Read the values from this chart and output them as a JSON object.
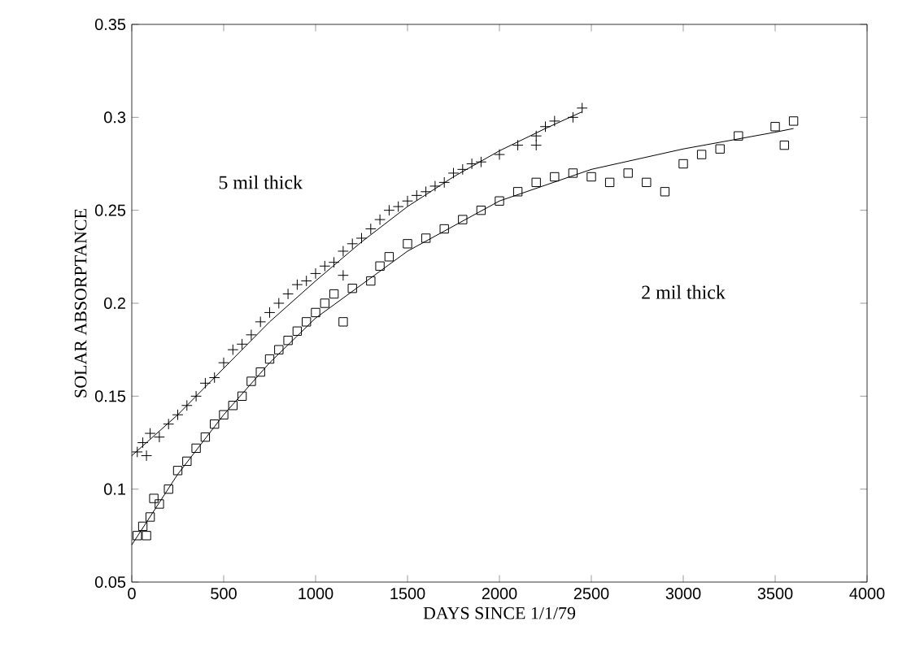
{
  "chart_data": {
    "type": "scatter",
    "xlabel": "DAYS SINCE 1/1/79",
    "ylabel": "SOLAR ABSORPTANCE",
    "xlim": [
      0,
      4000
    ],
    "xticks": [
      0,
      500,
      1000,
      1500,
      2000,
      2500,
      3000,
      3500,
      4000
    ],
    "ylim": [
      0.05,
      0.35
    ],
    "yticks": [
      0.05,
      0.1,
      0.15,
      0.2,
      0.25,
      0.3,
      0.35
    ],
    "grid": false,
    "legend": false,
    "series": [
      {
        "marker": "cross",
        "color": "#000000",
        "x": [
          30,
          60,
          80,
          100,
          150,
          200,
          250,
          300,
          350,
          400,
          450,
          500,
          550,
          600,
          650,
          700,
          750,
          800,
          850,
          900,
          950,
          1000,
          1050,
          1100,
          1150,
          1150,
          1200,
          1250,
          1300,
          1350,
          1400,
          1450,
          1500,
          1550,
          1600,
          1650,
          1700,
          1750,
          1800,
          1850,
          1900,
          2000,
          2100,
          2200,
          2200,
          2250,
          2300,
          2400,
          2450
        ],
        "values": [
          0.12,
          0.125,
          0.118,
          0.13,
          0.128,
          0.135,
          0.14,
          0.145,
          0.15,
          0.157,
          0.16,
          0.168,
          0.175,
          0.178,
          0.183,
          0.19,
          0.195,
          0.2,
          0.205,
          0.21,
          0.212,
          0.216,
          0.22,
          0.222,
          0.228,
          0.215,
          0.232,
          0.235,
          0.24,
          0.245,
          0.25,
          0.252,
          0.255,
          0.258,
          0.26,
          0.263,
          0.265,
          0.27,
          0.272,
          0.275,
          0.276,
          0.28,
          0.285,
          0.29,
          0.285,
          0.295,
          0.298,
          0.3,
          0.305
        ]
      },
      {
        "type": "line",
        "marker": "none",
        "line_style": "solid",
        "color": "#000000",
        "x": [
          0,
          250,
          500,
          750,
          1000,
          1250,
          1500,
          1750,
          2000,
          2250,
          2450
        ],
        "values": [
          0.118,
          0.14,
          0.165,
          0.19,
          0.212,
          0.233,
          0.252,
          0.268,
          0.282,
          0.294,
          0.303
        ]
      },
      {
        "marker": "square",
        "color": "#000000",
        "x": [
          30,
          60,
          80,
          100,
          120,
          150,
          200,
          250,
          300,
          350,
          400,
          450,
          500,
          550,
          600,
          650,
          700,
          750,
          800,
          850,
          900,
          950,
          1000,
          1050,
          1100,
          1150,
          1200,
          1300,
          1350,
          1400,
          1500,
          1600,
          1700,
          1800,
          1900,
          2000,
          2100,
          2200,
          2300,
          2400,
          2500,
          2600,
          2700,
          2800,
          2900,
          3000,
          3100,
          3200,
          3300,
          3500,
          3550,
          3600
        ],
        "values": [
          0.075,
          0.08,
          0.075,
          0.085,
          0.095,
          0.092,
          0.1,
          0.11,
          0.115,
          0.122,
          0.128,
          0.135,
          0.14,
          0.145,
          0.15,
          0.158,
          0.163,
          0.17,
          0.175,
          0.18,
          0.185,
          0.19,
          0.195,
          0.2,
          0.205,
          0.19,
          0.208,
          0.212,
          0.22,
          0.225,
          0.232,
          0.235,
          0.24,
          0.245,
          0.25,
          0.255,
          0.26,
          0.265,
          0.268,
          0.27,
          0.268,
          0.265,
          0.27,
          0.265,
          0.26,
          0.275,
          0.28,
          0.283,
          0.29,
          0.295,
          0.285,
          0.298
        ]
      },
      {
        "type": "line",
        "marker": "none",
        "line_style": "solid",
        "color": "#000000",
        "x": [
          0,
          250,
          500,
          750,
          1000,
          1500,
          2000,
          2500,
          3000,
          3500,
          3600
        ],
        "values": [
          0.07,
          0.108,
          0.14,
          0.168,
          0.192,
          0.228,
          0.255,
          0.272,
          0.283,
          0.292,
          0.294
        ]
      }
    ],
    "annotations": [
      "5 mil thick",
      "2 mil thick"
    ]
  }
}
